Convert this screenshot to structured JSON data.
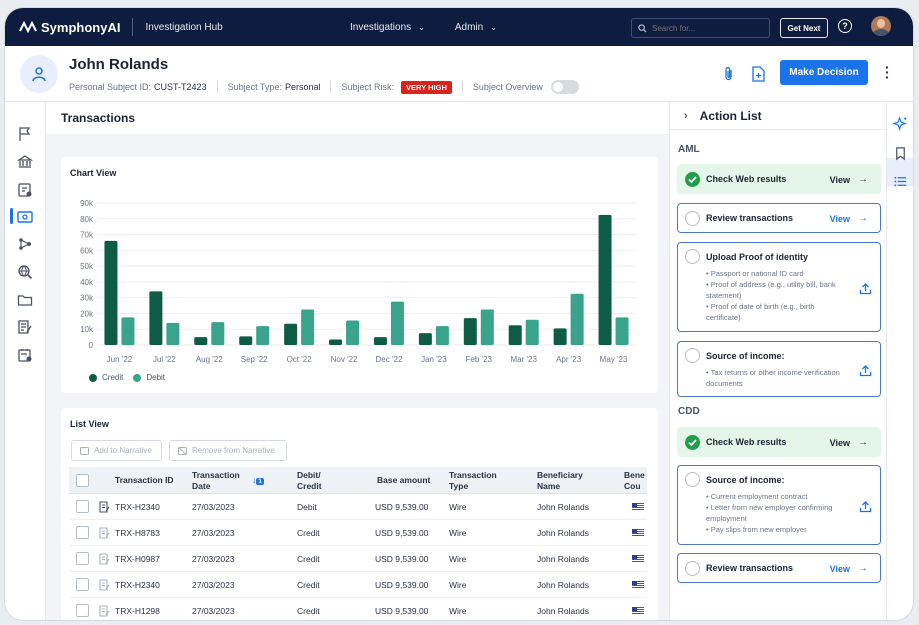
{
  "topbar": {
    "brand": "SymphonyAI",
    "hub": "Investigation Hub",
    "nav": [
      {
        "label": "Investigations"
      },
      {
        "label": "Admin"
      }
    ],
    "search_placeholder": "Search for...",
    "get_next": "Get Next",
    "help": "?"
  },
  "subject": {
    "name": "John Rolands",
    "id_label": "Personal Subject ID:",
    "id_value": "CUST-T2423",
    "type_label": "Subject Type:",
    "type_value": "Personal",
    "risk_label": "Subject Risk:",
    "risk_value": "VERY HIGH",
    "overview_label": "Subject Overview",
    "overview_on": false,
    "make_decision": "Make Decision"
  },
  "colors": {
    "credit": "#0e5c46",
    "debit": "#3aa38b",
    "accent": "#1a73e8",
    "risk": "#d9231d"
  },
  "main": {
    "title": "Transactions",
    "chart_card_title": "Chart View",
    "list_card_title": "List View",
    "add_to_narrative": "Add to Narrative",
    "remove_from_narrative": "Remove from Narrative"
  },
  "chart_data": {
    "type": "bar",
    "categories": [
      "Jun '22",
      "Jul '22",
      "Aug '22",
      "Sep '22",
      "Oct '22",
      "Nov '22",
      "Dec '22",
      "Jan '23",
      "Feb '23",
      "Mar '23",
      "Apr '23",
      "May '23"
    ],
    "series": [
      {
        "name": "Credit",
        "values": [
          66000,
          34000,
          5000,
          5500,
          13500,
          3500,
          5000,
          7500,
          17000,
          12500,
          10500,
          82500
        ]
      },
      {
        "name": "Debit",
        "values": [
          17500,
          14000,
          14500,
          12000,
          22500,
          15500,
          27500,
          12000,
          22500,
          16000,
          32500,
          17500
        ]
      }
    ],
    "y_ticks": [
      "0",
      "10k",
      "20k",
      "30k",
      "40k",
      "50k",
      "60k",
      "70k",
      "80k",
      "90k"
    ],
    "ylim": [
      0,
      90000
    ],
    "grid": true,
    "legend": "bottom-left"
  },
  "table": {
    "headers": {
      "txn_id": "Transaction ID",
      "txn_date_1": "Transaction",
      "txn_date_2": "Date",
      "debit_credit_1": "Debit/",
      "debit_credit_2": "Credit",
      "base_amount": "Base amount",
      "txn_type_1": "Transaction",
      "txn_type_2": "Type",
      "beneficiary_1": "Beneficiary",
      "beneficiary_2": "Name",
      "ben_country_1": "Bene",
      "ben_country_2": "Cou",
      "sort_badge": "1"
    },
    "rows": [
      {
        "id": "TRX-H2340",
        "date": "27/03/2023",
        "dc": "Debit",
        "amount": "USD 9,539.00",
        "type": "Wire",
        "beneficiary": "John Rolands"
      },
      {
        "id": "TRX-H8783",
        "date": "27/03/2023",
        "dc": "Credit",
        "amount": "USD 9,539.00",
        "type": "Wire",
        "beneficiary": "John Rolands"
      },
      {
        "id": "TRX-H0987",
        "date": "27/03/2023",
        "dc": "Credit",
        "amount": "USD 9,539.00",
        "type": "Wire",
        "beneficiary": "John Rolands"
      },
      {
        "id": "TRX-H2340",
        "date": "27/03/2023",
        "dc": "Credit",
        "amount": "USD 9,539.00",
        "type": "Wire",
        "beneficiary": "John Rolands"
      },
      {
        "id": "TRX-H1298",
        "date": "27/03/2023",
        "dc": "Credit",
        "amount": "USD 9,539.00",
        "type": "Wire",
        "beneficiary": "John Rolands"
      }
    ]
  },
  "action_list": {
    "title": "Action List",
    "aml_label": "AML",
    "cdd_label": "CDD",
    "view": "View",
    "aml": [
      {
        "title": "Check Web results",
        "done": true,
        "has_view": true
      },
      {
        "title": "Review transactions",
        "done": false,
        "has_view": true
      },
      {
        "title": "Upload Proof of identity",
        "done": false,
        "bullets": [
          "Passport or national ID card",
          "Proof of address (e.g., utility bill, bank statement)",
          "Proof of date of birth (e.g., birth certificate)"
        ]
      },
      {
        "title": "Source of income:",
        "done": false,
        "bullets": [
          "Tax returns or other income verification documents"
        ]
      }
    ],
    "cdd": [
      {
        "title": "Check Web results",
        "done": true,
        "has_view": true
      },
      {
        "title": "Source of income:",
        "done": false,
        "bullets": [
          "Current employment contract",
          "Letter from new employer confirming employment",
          "Pay slips from new employer"
        ]
      },
      {
        "title": "Review transactions",
        "done": false,
        "has_view": true
      }
    ]
  }
}
